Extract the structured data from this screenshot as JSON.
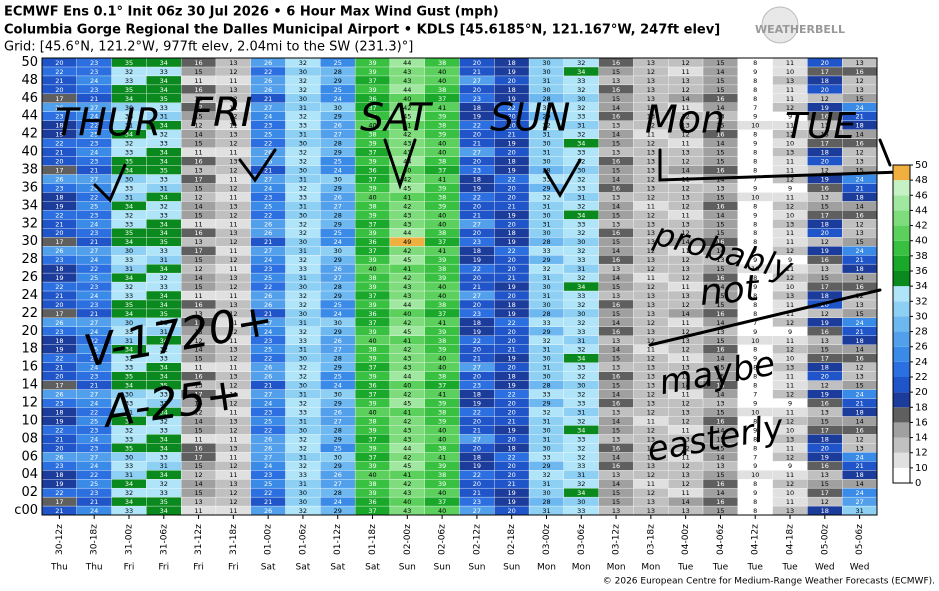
{
  "header": {
    "line1": "ECMWF Ens 0.1° Init 06z 30 Jul 2026 • 6 Hour Max Wind Gust (mph)",
    "line2": "Columbia Gorge Regional the Dalles Municipal Airport • KDLS [45.6185°N, 121.167°W, 247ft elev]",
    "line3": "Grid: [45.6°N, 121.2°W, 977ft elev, 2.04mi to the SW (231.3)°]",
    "logo": "WEATHERBELL"
  },
  "footer": "© 2026 European Centre for Medium-Range Weather Forecasts (ECMWF).",
  "chart_data": {
    "type": "heatmap",
    "x": [
      "30-12z",
      "30-18z",
      "31-00z",
      "31-06z",
      "31-12z",
      "31-18z",
      "01-00z",
      "01-06z",
      "01-12z",
      "01-18z",
      "02-00z",
      "02-06z",
      "02-12z",
      "02-18z",
      "03-00z",
      "03-06z",
      "03-12z",
      "03-18z",
      "04-00z",
      "04-06z",
      "04-12z",
      "04-18z",
      "05-00z",
      "05-06z"
    ],
    "days": [
      "Thu",
      "Thu",
      "Fri",
      "Fri",
      "Fri",
      "Fri",
      "Sat",
      "Sat",
      "Sat",
      "Sat",
      "Sun",
      "Sun",
      "Sun",
      "Sun",
      "Mon",
      "Mon",
      "Mon",
      "Mon",
      "Tue",
      "Tue",
      "Tue",
      "Tue",
      "Wed",
      "Wed"
    ],
    "y": [
      "c00",
      null,
      "02",
      null,
      "04",
      null,
      "06",
      null,
      "08",
      null,
      "10",
      null,
      "12",
      null,
      "14",
      null,
      "16",
      null,
      "18",
      null,
      "20",
      null,
      "22",
      null,
      "24",
      null,
      "26",
      null,
      "28",
      null,
      "30",
      null,
      "32",
      null,
      "34",
      null,
      "36",
      null,
      "38",
      null,
      "40",
      null,
      "42",
      null,
      "44",
      null,
      "46",
      null,
      "48",
      null,
      "50"
    ],
    "z": [
      [
        21,
        24,
        33,
        34,
        11,
        11,
        26,
        32,
        29,
        37,
        43,
        40,
        27,
        20,
        31,
        33,
        13,
        13,
        13,
        15,
        8,
        13,
        18,
        31
      ],
      [
        17,
        21,
        34,
        35,
        13,
        12,
        21,
        30,
        24,
        36,
        40,
        37,
        23,
        19,
        28,
        30,
        15,
        13,
        14,
        16,
        8,
        11,
        12,
        27
      ],
      [
        22,
        23,
        32,
        33,
        15,
        12,
        22,
        30,
        28,
        39,
        43,
        40,
        21,
        19,
        30,
        34,
        15,
        12,
        11,
        14,
        9,
        10,
        17,
        24
      ],
      [
        19,
        25,
        34,
        32,
        14,
        13,
        25,
        31,
        27,
        38,
        42,
        39,
        20,
        21,
        31,
        32,
        14,
        11,
        12,
        16,
        8,
        12,
        15,
        14
      ],
      [
        18,
        22,
        31,
        34,
        12,
        11,
        23,
        33,
        26,
        40,
        41,
        38,
        22,
        20,
        32,
        31,
        13,
        12,
        13,
        15,
        10,
        11,
        13,
        18
      ],
      [
        23,
        24,
        33,
        31,
        15,
        12,
        24,
        32,
        29,
        39,
        45,
        39,
        19,
        20,
        29,
        33,
        16,
        13,
        12,
        13,
        9,
        9,
        16,
        21
      ],
      [
        26,
        27,
        30,
        33,
        17,
        11,
        27,
        31,
        30,
        37,
        42,
        41,
        18,
        22,
        33,
        32,
        14,
        12,
        11,
        14,
        7,
        12,
        19,
        24
      ],
      [
        20,
        23,
        35,
        34,
        16,
        13,
        26,
        32,
        25,
        39,
        44,
        38,
        20,
        18,
        30,
        32,
        16,
        13,
        12,
        15,
        8,
        11,
        20,
        13
      ],
      [
        21,
        24,
        33,
        34,
        11,
        11,
        26,
        32,
        29,
        37,
        43,
        40,
        27,
        20,
        31,
        33,
        13,
        13,
        13,
        15,
        8,
        13,
        18,
        12
      ],
      [
        22,
        23,
        32,
        33,
        15,
        12,
        22,
        30,
        28,
        39,
        43,
        40,
        21,
        19,
        30,
        34,
        15,
        12,
        11,
        14,
        9,
        10,
        17,
        16
      ],
      [
        19,
        25,
        34,
        32,
        14,
        13,
        25,
        31,
        27,
        38,
        42,
        39,
        20,
        21,
        31,
        32,
        14,
        11,
        12,
        16,
        8,
        12,
        15,
        14
      ],
      [
        18,
        22,
        31,
        34,
        12,
        11,
        23,
        33,
        26,
        40,
        41,
        38,
        22,
        20,
        32,
        31,
        13,
        12,
        13,
        15,
        10,
        11,
        13,
        18
      ],
      [
        23,
        24,
        33,
        31,
        15,
        12,
        24,
        32,
        29,
        39,
        45,
        39,
        19,
        20,
        29,
        33,
        16,
        13,
        12,
        13,
        9,
        9,
        16,
        21
      ],
      [
        26,
        27,
        30,
        33,
        17,
        11,
        27,
        31,
        30,
        37,
        42,
        41,
        18,
        22,
        33,
        32,
        14,
        12,
        11,
        14,
        7,
        12,
        19,
        24
      ],
      [
        17,
        21,
        34,
        35,
        13,
        12,
        21,
        30,
        24,
        36,
        40,
        37,
        23,
        19,
        28,
        30,
        15,
        13,
        14,
        16,
        8,
        11,
        12,
        15
      ],
      [
        20,
        23,
        35,
        34,
        16,
        13,
        26,
        32,
        25,
        39,
        44,
        38,
        20,
        18,
        30,
        32,
        16,
        13,
        12,
        15,
        8,
        11,
        20,
        13
      ],
      [
        21,
        24,
        33,
        34,
        11,
        11,
        26,
        32,
        29,
        37,
        43,
        40,
        27,
        20,
        31,
        33,
        13,
        13,
        13,
        15,
        8,
        13,
        18,
        12
      ],
      [
        22,
        23,
        32,
        33,
        15,
        12,
        22,
        30,
        28,
        39,
        43,
        40,
        21,
        19,
        30,
        34,
        15,
        12,
        11,
        14,
        9,
        10,
        17,
        16
      ],
      [
        19,
        25,
        34,
        32,
        14,
        13,
        25,
        31,
        27,
        38,
        42,
        39,
        20,
        21,
        31,
        32,
        14,
        11,
        12,
        16,
        8,
        12,
        15,
        14
      ],
      [
        18,
        22,
        31,
        34,
        12,
        11,
        23,
        33,
        26,
        40,
        41,
        38,
        22,
        20,
        32,
        31,
        13,
        12,
        13,
        15,
        10,
        11,
        13,
        18
      ],
      [
        23,
        24,
        33,
        31,
        15,
        12,
        24,
        32,
        29,
        39,
        45,
        39,
        19,
        20,
        29,
        33,
        16,
        13,
        12,
        13,
        9,
        9,
        16,
        21
      ],
      [
        26,
        27,
        30,
        33,
        17,
        11,
        27,
        31,
        30,
        37,
        42,
        41,
        18,
        22,
        33,
        32,
        14,
        12,
        11,
        14,
        7,
        12,
        19,
        24
      ],
      [
        17,
        21,
        34,
        35,
        13,
        12,
        21,
        30,
        24,
        36,
        40,
        37,
        23,
        19,
        28,
        30,
        15,
        13,
        14,
        16,
        8,
        11,
        12,
        15
      ],
      [
        20,
        23,
        35,
        34,
        16,
        13,
        26,
        32,
        25,
        39,
        44,
        38,
        20,
        18,
        30,
        32,
        16,
        13,
        12,
        15,
        8,
        11,
        20,
        13
      ],
      [
        21,
        24,
        33,
        34,
        11,
        11,
        26,
        32,
        29,
        37,
        43,
        40,
        27,
        20,
        31,
        33,
        13,
        13,
        13,
        15,
        8,
        13,
        18,
        12
      ],
      [
        22,
        23,
        32,
        33,
        15,
        12,
        22,
        30,
        28,
        39,
        43,
        40,
        21,
        19,
        30,
        34,
        15,
        12,
        11,
        14,
        9,
        10,
        17,
        16
      ],
      [
        19,
        25,
        34,
        32,
        14,
        13,
        25,
        31,
        27,
        38,
        42,
        39,
        20,
        21,
        31,
        32,
        14,
        11,
        12,
        16,
        8,
        12,
        15,
        14
      ],
      [
        18,
        22,
        31,
        34,
        12,
        11,
        23,
        33,
        26,
        40,
        41,
        38,
        22,
        20,
        32,
        31,
        13,
        12,
        13,
        15,
        10,
        11,
        13,
        18
      ],
      [
        23,
        24,
        33,
        31,
        15,
        12,
        24,
        32,
        29,
        39,
        45,
        39,
        19,
        20,
        29,
        33,
        16,
        13,
        12,
        13,
        9,
        9,
        16,
        21
      ],
      [
        26,
        27,
        30,
        33,
        17,
        11,
        27,
        31,
        30,
        37,
        42,
        41,
        18,
        22,
        33,
        32,
        14,
        12,
        11,
        14,
        7,
        12,
        19,
        24
      ],
      [
        17,
        21,
        34,
        35,
        13,
        12,
        21,
        30,
        24,
        36,
        49,
        37,
        23,
        19,
        28,
        30,
        15,
        13,
        14,
        16,
        8,
        11,
        12,
        15
      ],
      [
        20,
        23,
        35,
        34,
        16,
        13,
        26,
        32,
        25,
        39,
        44,
        38,
        20,
        18,
        30,
        32,
        16,
        13,
        12,
        15,
        8,
        11,
        20,
        13
      ],
      [
        21,
        24,
        33,
        34,
        11,
        11,
        26,
        32,
        29,
        37,
        43,
        40,
        27,
        20,
        31,
        33,
        13,
        13,
        13,
        15,
        8,
        13,
        18,
        12
      ],
      [
        22,
        23,
        32,
        33,
        15,
        12,
        22,
        30,
        28,
        39,
        43,
        40,
        21,
        19,
        30,
        34,
        15,
        12,
        11,
        14,
        9,
        10,
        17,
        16
      ],
      [
        19,
        25,
        34,
        32,
        14,
        13,
        25,
        31,
        27,
        38,
        42,
        39,
        20,
        21,
        31,
        32,
        14,
        11,
        12,
        16,
        8,
        12,
        15,
        14
      ],
      [
        18,
        22,
        31,
        34,
        12,
        11,
        23,
        33,
        26,
        40,
        41,
        38,
        22,
        20,
        32,
        31,
        13,
        12,
        13,
        15,
        10,
        11,
        13,
        18
      ],
      [
        23,
        24,
        33,
        31,
        15,
        12,
        24,
        32,
        29,
        39,
        45,
        39,
        19,
        20,
        29,
        33,
        16,
        13,
        12,
        13,
        9,
        9,
        16,
        21
      ],
      [
        26,
        27,
        30,
        33,
        17,
        11,
        27,
        31,
        30,
        37,
        42,
        41,
        18,
        22,
        33,
        32,
        14,
        12,
        11,
        14,
        7,
        12,
        19,
        24
      ],
      [
        17,
        21,
        34,
        35,
        13,
        12,
        21,
        30,
        24,
        36,
        40,
        37,
        23,
        19,
        28,
        30,
        15,
        13,
        14,
        16,
        8,
        11,
        12,
        15
      ],
      [
        20,
        23,
        35,
        34,
        16,
        13,
        26,
        32,
        25,
        39,
        44,
        38,
        20,
        18,
        30,
        32,
        16,
        13,
        12,
        15,
        8,
        11,
        20,
        13
      ],
      [
        21,
        24,
        33,
        34,
        11,
        11,
        26,
        32,
        29,
        37,
        43,
        40,
        27,
        20,
        31,
        33,
        13,
        13,
        13,
        15,
        8,
        13,
        18,
        12
      ],
      [
        22,
        23,
        32,
        33,
        15,
        12,
        22,
        30,
        28,
        39,
        43,
        40,
        21,
        19,
        30,
        34,
        15,
        12,
        11,
        14,
        9,
        10,
        17,
        16
      ],
      [
        19,
        25,
        34,
        32,
        14,
        13,
        25,
        31,
        27,
        38,
        42,
        39,
        20,
        21,
        31,
        32,
        14,
        11,
        12,
        16,
        8,
        12,
        15,
        14
      ],
      [
        18,
        22,
        31,
        34,
        12,
        11,
        23,
        33,
        26,
        40,
        41,
        38,
        22,
        20,
        32,
        31,
        13,
        12,
        13,
        15,
        10,
        11,
        13,
        18
      ],
      [
        23,
        24,
        33,
        31,
        15,
        12,
        24,
        32,
        29,
        39,
        45,
        39,
        19,
        20,
        29,
        33,
        16,
        13,
        12,
        13,
        9,
        9,
        16,
        21
      ],
      [
        26,
        27,
        30,
        33,
        17,
        11,
        27,
        31,
        30,
        37,
        42,
        41,
        18,
        22,
        33,
        32,
        14,
        12,
        11,
        14,
        7,
        12,
        19,
        24
      ],
      [
        17,
        21,
        34,
        35,
        13,
        12,
        21,
        30,
        24,
        36,
        40,
        37,
        23,
        19,
        28,
        30,
        15,
        13,
        14,
        16,
        8,
        11,
        12,
        15
      ],
      [
        20,
        23,
        35,
        34,
        16,
        13,
        26,
        32,
        25,
        39,
        44,
        38,
        20,
        18,
        30,
        32,
        16,
        13,
        12,
        15,
        8,
        11,
        20,
        13
      ],
      [
        21,
        24,
        33,
        34,
        11,
        11,
        26,
        32,
        29,
        37,
        43,
        40,
        27,
        20,
        31,
        33,
        13,
        13,
        13,
        15,
        8,
        13,
        18,
        12
      ],
      [
        22,
        23,
        32,
        33,
        15,
        12,
        22,
        30,
        28,
        39,
        43,
        40,
        21,
        19,
        30,
        34,
        15,
        12,
        11,
        14,
        9,
        10,
        17,
        16
      ],
      [
        20,
        23,
        35,
        34,
        16,
        13,
        26,
        32,
        25,
        39,
        44,
        38,
        20,
        18,
        30,
        32,
        16,
        13,
        12,
        15,
        8,
        11,
        20,
        13
      ]
    ],
    "colorbar": {
      "ticks": [
        0,
        10,
        12,
        14,
        16,
        18,
        20,
        22,
        24,
        26,
        28,
        30,
        32,
        34,
        36,
        38,
        40,
        42,
        44,
        46,
        48,
        50
      ],
      "colors": [
        "#ffffff",
        "#e0e0e0",
        "#c0c0c0",
        "#a0a0a0",
        "#5f5f5f",
        "#1c3c9c",
        "#1f55c8",
        "#2b6fe0",
        "#3a8ae8",
        "#52a0ec",
        "#6db8f0",
        "#8dd0f4",
        "#b0e4f8",
        "#0a8a1e",
        "#1aa82a",
        "#38c040",
        "#5cd05c",
        "#7edc7c",
        "#a0e8a0",
        "#c4f2c4",
        "#f0b040"
      ]
    },
    "annotations": [
      "THUR",
      "FRI",
      "SAT",
      "SUN",
      "Mon",
      "TUE",
      "probably",
      "not",
      "maybe",
      "easterly",
      "V-1720+",
      "A-25+"
    ]
  }
}
